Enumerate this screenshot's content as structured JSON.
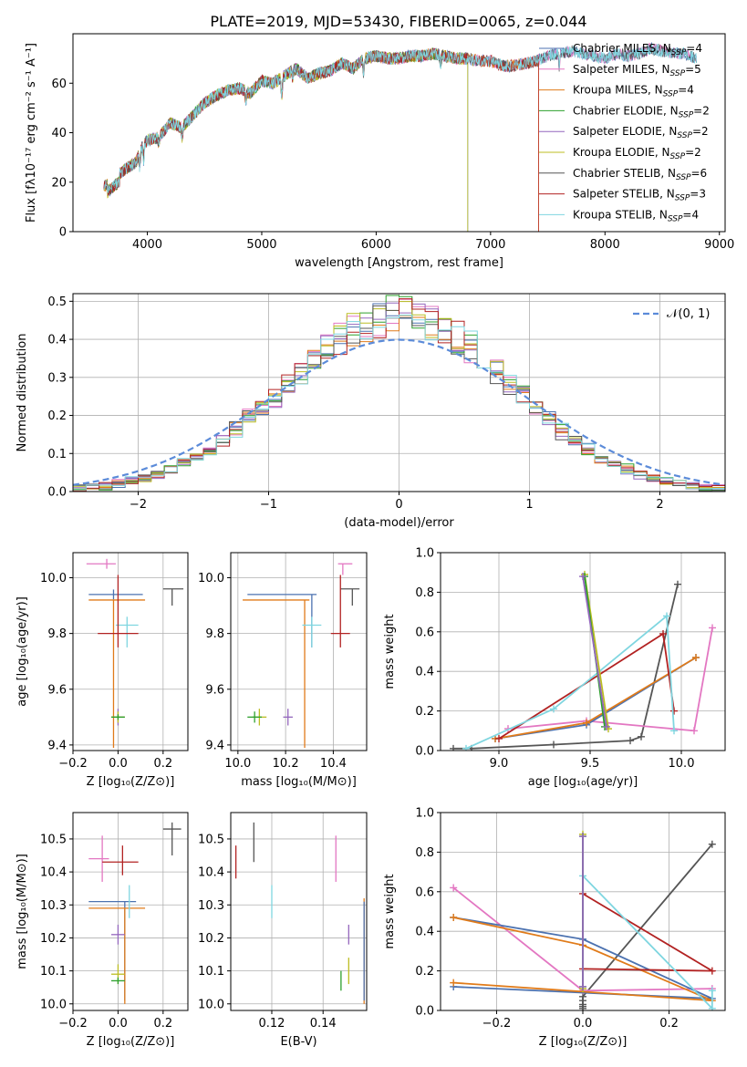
{
  "figure": {
    "title": "PLATE=2019, MJD=53430, FIBERID=0065, z=0.044"
  },
  "chart_data": [
    {
      "id": "spectrum",
      "type": "line",
      "xlabel": "wavelength [Angstrom, rest frame]",
      "ylabel": "Flux [fλ10⁻¹⁷ erg cm⁻² s⁻¹ A⁻¹]",
      "xlim": [
        3350,
        9050
      ],
      "ylim": [
        0,
        80
      ],
      "xticks": [
        4000,
        5000,
        6000,
        7000,
        8000,
        9000
      ],
      "yticks": [
        0,
        20,
        40,
        60
      ],
      "grid": false,
      "legend_placement": "right",
      "anchors_x": [
        3620,
        3700,
        3800,
        3900,
        3950,
        4000,
        4100,
        4200,
        4300,
        4400,
        4500,
        4600,
        4700,
        4800,
        4900,
        5000,
        5100,
        5200,
        5300,
        5400,
        5500,
        5600,
        5700,
        5800,
        5900,
        6000,
        6100,
        6200,
        6300,
        6400,
        6500,
        6600,
        6700,
        6800,
        6900,
        7000,
        7100,
        7200,
        7300,
        7400,
        7500,
        7600,
        7700,
        7800,
        7900,
        8000,
        8100,
        8200,
        8300,
        8400,
        8500,
        8600,
        8700,
        8800
      ],
      "anchors_y": [
        18,
        21,
        25,
        28,
        34,
        37,
        38,
        44,
        42,
        47,
        52,
        55,
        57,
        58,
        56,
        61,
        60,
        63,
        66,
        62,
        64,
        65,
        68,
        66,
        70,
        71,
        70,
        70,
        71,
        71,
        72,
        71,
        70,
        70,
        69,
        69,
        67,
        67,
        68,
        69,
        71,
        72,
        73,
        72,
        71,
        70,
        72,
        71,
        72,
        74,
        73,
        72,
        72,
        70
      ],
      "series": [
        {
          "name": "Chabrier MILES, N_SSP=4",
          "color": "#4c72b0",
          "xmax": 8800
        },
        {
          "name": "Salpeter MILES, N_SSP=5",
          "color": "#e377c2",
          "xmax": 8800
        },
        {
          "name": "Kroupa MILES, N_SSP=4",
          "color": "#e07b1a",
          "xmax": 7420
        },
        {
          "name": "Chabrier ELODIE, N_SSP=2",
          "color": "#2ca02c",
          "xmax": 6800
        },
        {
          "name": "Salpeter ELODIE, N_SSP=2",
          "color": "#9467bd",
          "xmax": 6800
        },
        {
          "name": "Kroupa ELODIE, N_SSP=2",
          "color": "#bcbd22",
          "xmax": 6800
        },
        {
          "name": "Chabrier STELIB, N_SSP=6",
          "color": "#555555",
          "xmax": 8800
        },
        {
          "name": "Salpeter STELIB, N_SSP=3",
          "color": "#b22222",
          "xmax": 7420
        },
        {
          "name": "Kroupa STELIB, N_SSP=4",
          "color": "#7fd6e0",
          "xmax": 8800
        }
      ]
    },
    {
      "id": "residuals",
      "type": "histogram",
      "xlabel": "(data-model)/error",
      "ylabel": "Normed distribution",
      "xlim": [
        -2.5,
        2.5
      ],
      "ylim": [
        0,
        0.52
      ],
      "xticks": [
        -2,
        -1,
        0,
        1,
        2
      ],
      "yticks": [
        0.0,
        0.1,
        0.2,
        0.3,
        0.4,
        0.5
      ],
      "grid": true,
      "legend_placement": "top-right",
      "bin_width": 0.1,
      "reference_curve": {
        "name": "N(0,1)",
        "label": "𝒩(0, 1)",
        "color": "#5b8bd9",
        "style": "dashed"
      },
      "series_colors": [
        "#4c72b0",
        "#e377c2",
        "#e07b1a",
        "#2ca02c",
        "#9467bd",
        "#bcbd22",
        "#555555",
        "#b22222",
        "#7fd6e0"
      ]
    },
    {
      "id": "age_vs_Z",
      "type": "errorbar",
      "xlabel": "Z [log₁₀(Z/Z⊙)]",
      "ylabel": "age  [log₁₀(age/yr)]",
      "xlim": [
        -0.2,
        0.31
      ],
      "ylim": [
        9.38,
        10.09
      ],
      "xticks": [
        -0.2,
        0.0,
        0.2
      ],
      "yticks": [
        9.4,
        9.6,
        9.8,
        10.0
      ],
      "grid": true,
      "points": [
        {
          "color": "#e377c2",
          "x": -0.05,
          "xerr": [
            0.09,
            0.04
          ],
          "y": 10.05,
          "yerr": [
            0.0,
            0.0
          ]
        },
        {
          "color": "#4c72b0",
          "x": -0.02,
          "xerr": [
            0.11,
            0.13
          ],
          "y": 9.94,
          "yerr": [
            0.0,
            0.0
          ]
        },
        {
          "color": "#e07b1a",
          "x": -0.02,
          "xerr": [
            0.11,
            0.14
          ],
          "y": 9.92,
          "yerr": [
            0.53,
            0.0
          ]
        },
        {
          "color": "#555555",
          "x": 0.24,
          "xerr": [
            0.04,
            0.05
          ],
          "y": 9.96,
          "yerr": [
            0.06,
            0.0
          ]
        },
        {
          "color": "#7fd6e0",
          "x": 0.04,
          "xerr": [
            0.05,
            0.05
          ],
          "y": 9.83,
          "yerr": [
            0.08,
            0.03
          ]
        },
        {
          "color": "#b22222",
          "x": 0.0,
          "xerr": [
            0.09,
            0.09
          ],
          "y": 9.8,
          "yerr": [
            0.05,
            0.21
          ]
        },
        {
          "color": "#9467bd",
          "x": 0.0,
          "xerr": [
            0.03,
            0.03
          ],
          "y": 9.5,
          "yerr": [
            0.03,
            0.03
          ]
        },
        {
          "color": "#bcbd22",
          "x": 0.0,
          "xerr": [
            0.03,
            0.03
          ],
          "y": 9.5,
          "yerr": [
            0.02,
            0.02
          ]
        },
        {
          "color": "#2ca02c",
          "x": 0.0,
          "xerr": [
            0.03,
            0.03
          ],
          "y": 9.5,
          "yerr": [
            0.01,
            0.01
          ]
        }
      ]
    },
    {
      "id": "age_vs_mass",
      "type": "errorbar",
      "xlabel": "mass [log₁₀(M/M⊙)]",
      "ylabel": "",
      "xlim": [
        9.97,
        10.54
      ],
      "ylim": [
        9.38,
        10.09
      ],
      "xticks": [
        10.0,
        10.2,
        10.4
      ],
      "yticks": [
        9.4,
        9.6,
        9.8,
        10.0
      ],
      "grid": true,
      "points": [
        {
          "color": "#e377c2",
          "x": 10.44,
          "xerr": [
            0.02,
            0.04
          ],
          "y": 10.05,
          "yerr": [
            0.04,
            0.0
          ]
        },
        {
          "color": "#4c72b0",
          "x": 10.31,
          "xerr": [
            0.27,
            0.02
          ],
          "y": 9.94,
          "yerr": [
            0.19,
            0.0
          ]
        },
        {
          "color": "#e07b1a",
          "x": 10.28,
          "xerr": [
            0.26,
            0.02
          ],
          "y": 9.92,
          "yerr": [
            0.53,
            0.0
          ]
        },
        {
          "color": "#555555",
          "x": 10.48,
          "xerr": [
            0.05,
            0.03
          ],
          "y": 9.96,
          "yerr": [
            0.06,
            0.0
          ]
        },
        {
          "color": "#7fd6e0",
          "x": 10.31,
          "xerr": [
            0.04,
            0.04
          ],
          "y": 9.83,
          "yerr": [
            0.08,
            0.03
          ]
        },
        {
          "color": "#b22222",
          "x": 10.43,
          "xerr": [
            0.04,
            0.04
          ],
          "y": 9.8,
          "yerr": [
            0.05,
            0.21
          ]
        },
        {
          "color": "#9467bd",
          "x": 10.21,
          "xerr": [
            0.02,
            0.02
          ],
          "y": 9.5,
          "yerr": [
            0.03,
            0.03
          ]
        },
        {
          "color": "#bcbd22",
          "x": 10.09,
          "xerr": [
            0.03,
            0.03
          ],
          "y": 9.5,
          "yerr": [
            0.03,
            0.03
          ]
        },
        {
          "color": "#2ca02c",
          "x": 10.07,
          "xerr": [
            0.03,
            0.03
          ],
          "y": 9.5,
          "yerr": [
            0.02,
            0.02
          ]
        }
      ]
    },
    {
      "id": "weight_vs_age",
      "type": "line",
      "xlabel": "age  [log₁₀(age/yr)]",
      "ylabel": "mass weight",
      "xlim": [
        8.68,
        10.24
      ],
      "ylim": [
        0.0,
        1.0
      ],
      "xticks": [
        9.0,
        9.5,
        10.0
      ],
      "yticks": [
        0.0,
        0.2,
        0.4,
        0.6,
        0.8,
        1.0
      ],
      "grid": true,
      "series": [
        {
          "color": "#555555",
          "x": [
            8.75,
            8.85,
            9.3,
            9.72,
            9.78,
            9.98
          ],
          "y": [
            0.01,
            0.01,
            0.03,
            0.05,
            0.07,
            0.84
          ]
        },
        {
          "color": "#e377c2",
          "x": [
            9.05,
            9.48,
            10.07,
            10.17
          ],
          "y": [
            0.11,
            0.15,
            0.1,
            0.62
          ]
        },
        {
          "color": "#4c72b0",
          "x": [
            8.98,
            9.48,
            10.08
          ],
          "y": [
            0.06,
            0.13,
            0.47
          ]
        },
        {
          "color": "#e07b1a",
          "x": [
            8.98,
            9.48,
            10.08
          ],
          "y": [
            0.06,
            0.14,
            0.47
          ]
        },
        {
          "color": "#b22222",
          "x": [
            9.0,
            9.9,
            9.96
          ],
          "y": [
            0.06,
            0.59,
            0.2
          ]
        },
        {
          "color": "#7fd6e0",
          "x": [
            8.82,
            9.3,
            9.92,
            9.96
          ],
          "y": [
            0.01,
            0.21,
            0.68,
            0.1
          ]
        },
        {
          "color": "#bcbd22",
          "x": [
            9.47,
            9.6
          ],
          "y": [
            0.89,
            0.11
          ]
        },
        {
          "color": "#2ca02c",
          "x": [
            9.47,
            9.58
          ],
          "y": [
            0.88,
            0.12
          ]
        },
        {
          "color": "#9467bd",
          "x": [
            9.46,
            9.59
          ],
          "y": [
            0.88,
            0.12
          ]
        }
      ]
    },
    {
      "id": "mass_vs_Z",
      "type": "errorbar",
      "xlabel": "Z [log₁₀(Z/Z⊙)]",
      "ylabel": "mass [log₁₀(M/M⊙)]",
      "xlim": [
        -0.2,
        0.31
      ],
      "ylim": [
        9.98,
        10.58
      ],
      "xticks": [
        -0.2,
        0.0,
        0.2
      ],
      "yticks": [
        10.0,
        10.1,
        10.2,
        10.3,
        10.4,
        10.5
      ],
      "grid": true,
      "points": [
        {
          "color": "#e377c2",
          "x": -0.07,
          "xerr": [
            0.06,
            0.03
          ],
          "y": 10.44,
          "yerr": [
            0.07,
            0.07
          ]
        },
        {
          "color": "#555555",
          "x": 0.24,
          "xerr": [
            0.04,
            0.04
          ],
          "y": 10.53,
          "yerr": [
            0.08,
            0.02
          ]
        },
        {
          "color": "#b22222",
          "x": 0.02,
          "xerr": [
            0.09,
            0.07
          ],
          "y": 10.43,
          "yerr": [
            0.04,
            0.05
          ]
        },
        {
          "color": "#4c72b0",
          "x": 0.03,
          "xerr": [
            0.16,
            0.05
          ],
          "y": 10.31,
          "yerr": [
            0.3,
            0.0
          ]
        },
        {
          "color": "#e07b1a",
          "x": 0.03,
          "xerr": [
            0.16,
            0.09
          ],
          "y": 10.29,
          "yerr": [
            0.29,
            0.0
          ]
        },
        {
          "color": "#7fd6e0",
          "x": 0.05,
          "xerr": [
            0.0,
            0.0
          ],
          "y": 10.31,
          "yerr": [
            0.05,
            0.05
          ]
        },
        {
          "color": "#9467bd",
          "x": 0.0,
          "xerr": [
            0.03,
            0.03
          ],
          "y": 10.21,
          "yerr": [
            0.03,
            0.03
          ]
        },
        {
          "color": "#bcbd22",
          "x": 0.0,
          "xerr": [
            0.03,
            0.03
          ],
          "y": 10.09,
          "yerr": [
            0.03,
            0.03
          ]
        },
        {
          "color": "#2ca02c",
          "x": 0.0,
          "xerr": [
            0.03,
            0.03
          ],
          "y": 10.07,
          "yerr": [
            0.01,
            0.01
          ]
        }
      ]
    },
    {
      "id": "mass_vs_EBV",
      "type": "errorbar",
      "xlabel": "E(B-V)",
      "ylabel": "",
      "xlim": [
        0.104,
        0.157
      ],
      "ylim": [
        9.98,
        10.58
      ],
      "xticks": [
        0.12,
        0.14
      ],
      "yticks": [
        10.0,
        10.1,
        10.2,
        10.3,
        10.4,
        10.5
      ],
      "grid": true,
      "points": [
        {
          "color": "#b22222",
          "x": 0.106,
          "xerr": [
            0.0,
            0.0
          ],
          "y": 10.43,
          "yerr": [
            0.05,
            0.05
          ]
        },
        {
          "color": "#555555",
          "x": 0.113,
          "xerr": [
            0.0,
            0.0
          ],
          "y": 10.49,
          "yerr": [
            0.06,
            0.06
          ]
        },
        {
          "color": "#7fd6e0",
          "x": 0.12,
          "xerr": [
            0.0,
            0.0
          ],
          "y": 10.31,
          "yerr": [
            0.05,
            0.05
          ]
        },
        {
          "color": "#e377c2",
          "x": 0.145,
          "xerr": [
            0.0,
            0.0
          ],
          "y": 10.44,
          "yerr": [
            0.07,
            0.07
          ]
        },
        {
          "color": "#9467bd",
          "x": 0.15,
          "xerr": [
            0.0,
            0.0
          ],
          "y": 10.21,
          "yerr": [
            0.03,
            0.03
          ]
        },
        {
          "color": "#bcbd22",
          "x": 0.15,
          "xerr": [
            0.0,
            0.0
          ],
          "y": 10.1,
          "yerr": [
            0.04,
            0.04
          ]
        },
        {
          "color": "#2ca02c",
          "x": 0.147,
          "xerr": [
            0.0,
            0.0
          ],
          "y": 10.07,
          "yerr": [
            0.03,
            0.03
          ]
        },
        {
          "color": "#e07b1a",
          "x": 0.156,
          "xerr": [
            0.0,
            0.0
          ],
          "y": 10.16,
          "yerr": [
            0.16,
            0.16
          ]
        },
        {
          "color": "#4c72b0",
          "x": 0.156,
          "xerr": [
            0.0,
            0.0
          ],
          "y": 10.16,
          "yerr": [
            0.15,
            0.15
          ]
        }
      ]
    },
    {
      "id": "weight_vs_Z",
      "type": "line",
      "xlabel": "Z [log₁₀(Z/Z⊙)]",
      "ylabel": "mass weight",
      "xlim": [
        -0.33,
        0.33
      ],
      "ylim": [
        0.0,
        1.0
      ],
      "xticks": [
        -0.2,
        0.0,
        0.2
      ],
      "yticks": [
        0.0,
        0.2,
        0.4,
        0.6,
        0.8,
        1.0
      ],
      "grid": true,
      "series": [
        {
          "color": "#555555",
          "x": [
            0.0,
            0.0,
            0.0,
            0.0,
            0.0,
            0.3
          ],
          "y": [
            0.01,
            0.02,
            0.03,
            0.05,
            0.07,
            0.84
          ]
        },
        {
          "color": "#e377c2",
          "x": [
            -0.3,
            0.0,
            0.3
          ],
          "y": [
            0.62,
            0.1,
            0.11
          ]
        },
        {
          "color": "#4c72b0",
          "x": [
            -0.3,
            0.0,
            0.3,
            -0.3
          ],
          "y": [
            0.47,
            0.36,
            0.06,
            0.12
          ]
        },
        {
          "color": "#e07b1a",
          "x": [
            -0.3,
            0.0,
            0.3,
            -0.3
          ],
          "y": [
            0.47,
            0.33,
            0.05,
            0.14
          ]
        },
        {
          "color": "#b22222",
          "x": [
            0.0,
            0.3,
            0.0
          ],
          "y": [
            0.59,
            0.2,
            0.21
          ]
        },
        {
          "color": "#7fd6e0",
          "x": [
            0.0,
            0.3,
            0.3
          ],
          "y": [
            0.68,
            0.01,
            0.1
          ]
        },
        {
          "color": "#bcbd22",
          "x": [
            0.0,
            0.0
          ],
          "y": [
            0.89,
            0.11
          ]
        },
        {
          "color": "#2ca02c",
          "x": [
            0.0,
            0.0
          ],
          "y": [
            0.88,
            0.12
          ]
        },
        {
          "color": "#9467bd",
          "x": [
            0.0,
            0.0
          ],
          "y": [
            0.88,
            0.12
          ]
        }
      ]
    }
  ]
}
